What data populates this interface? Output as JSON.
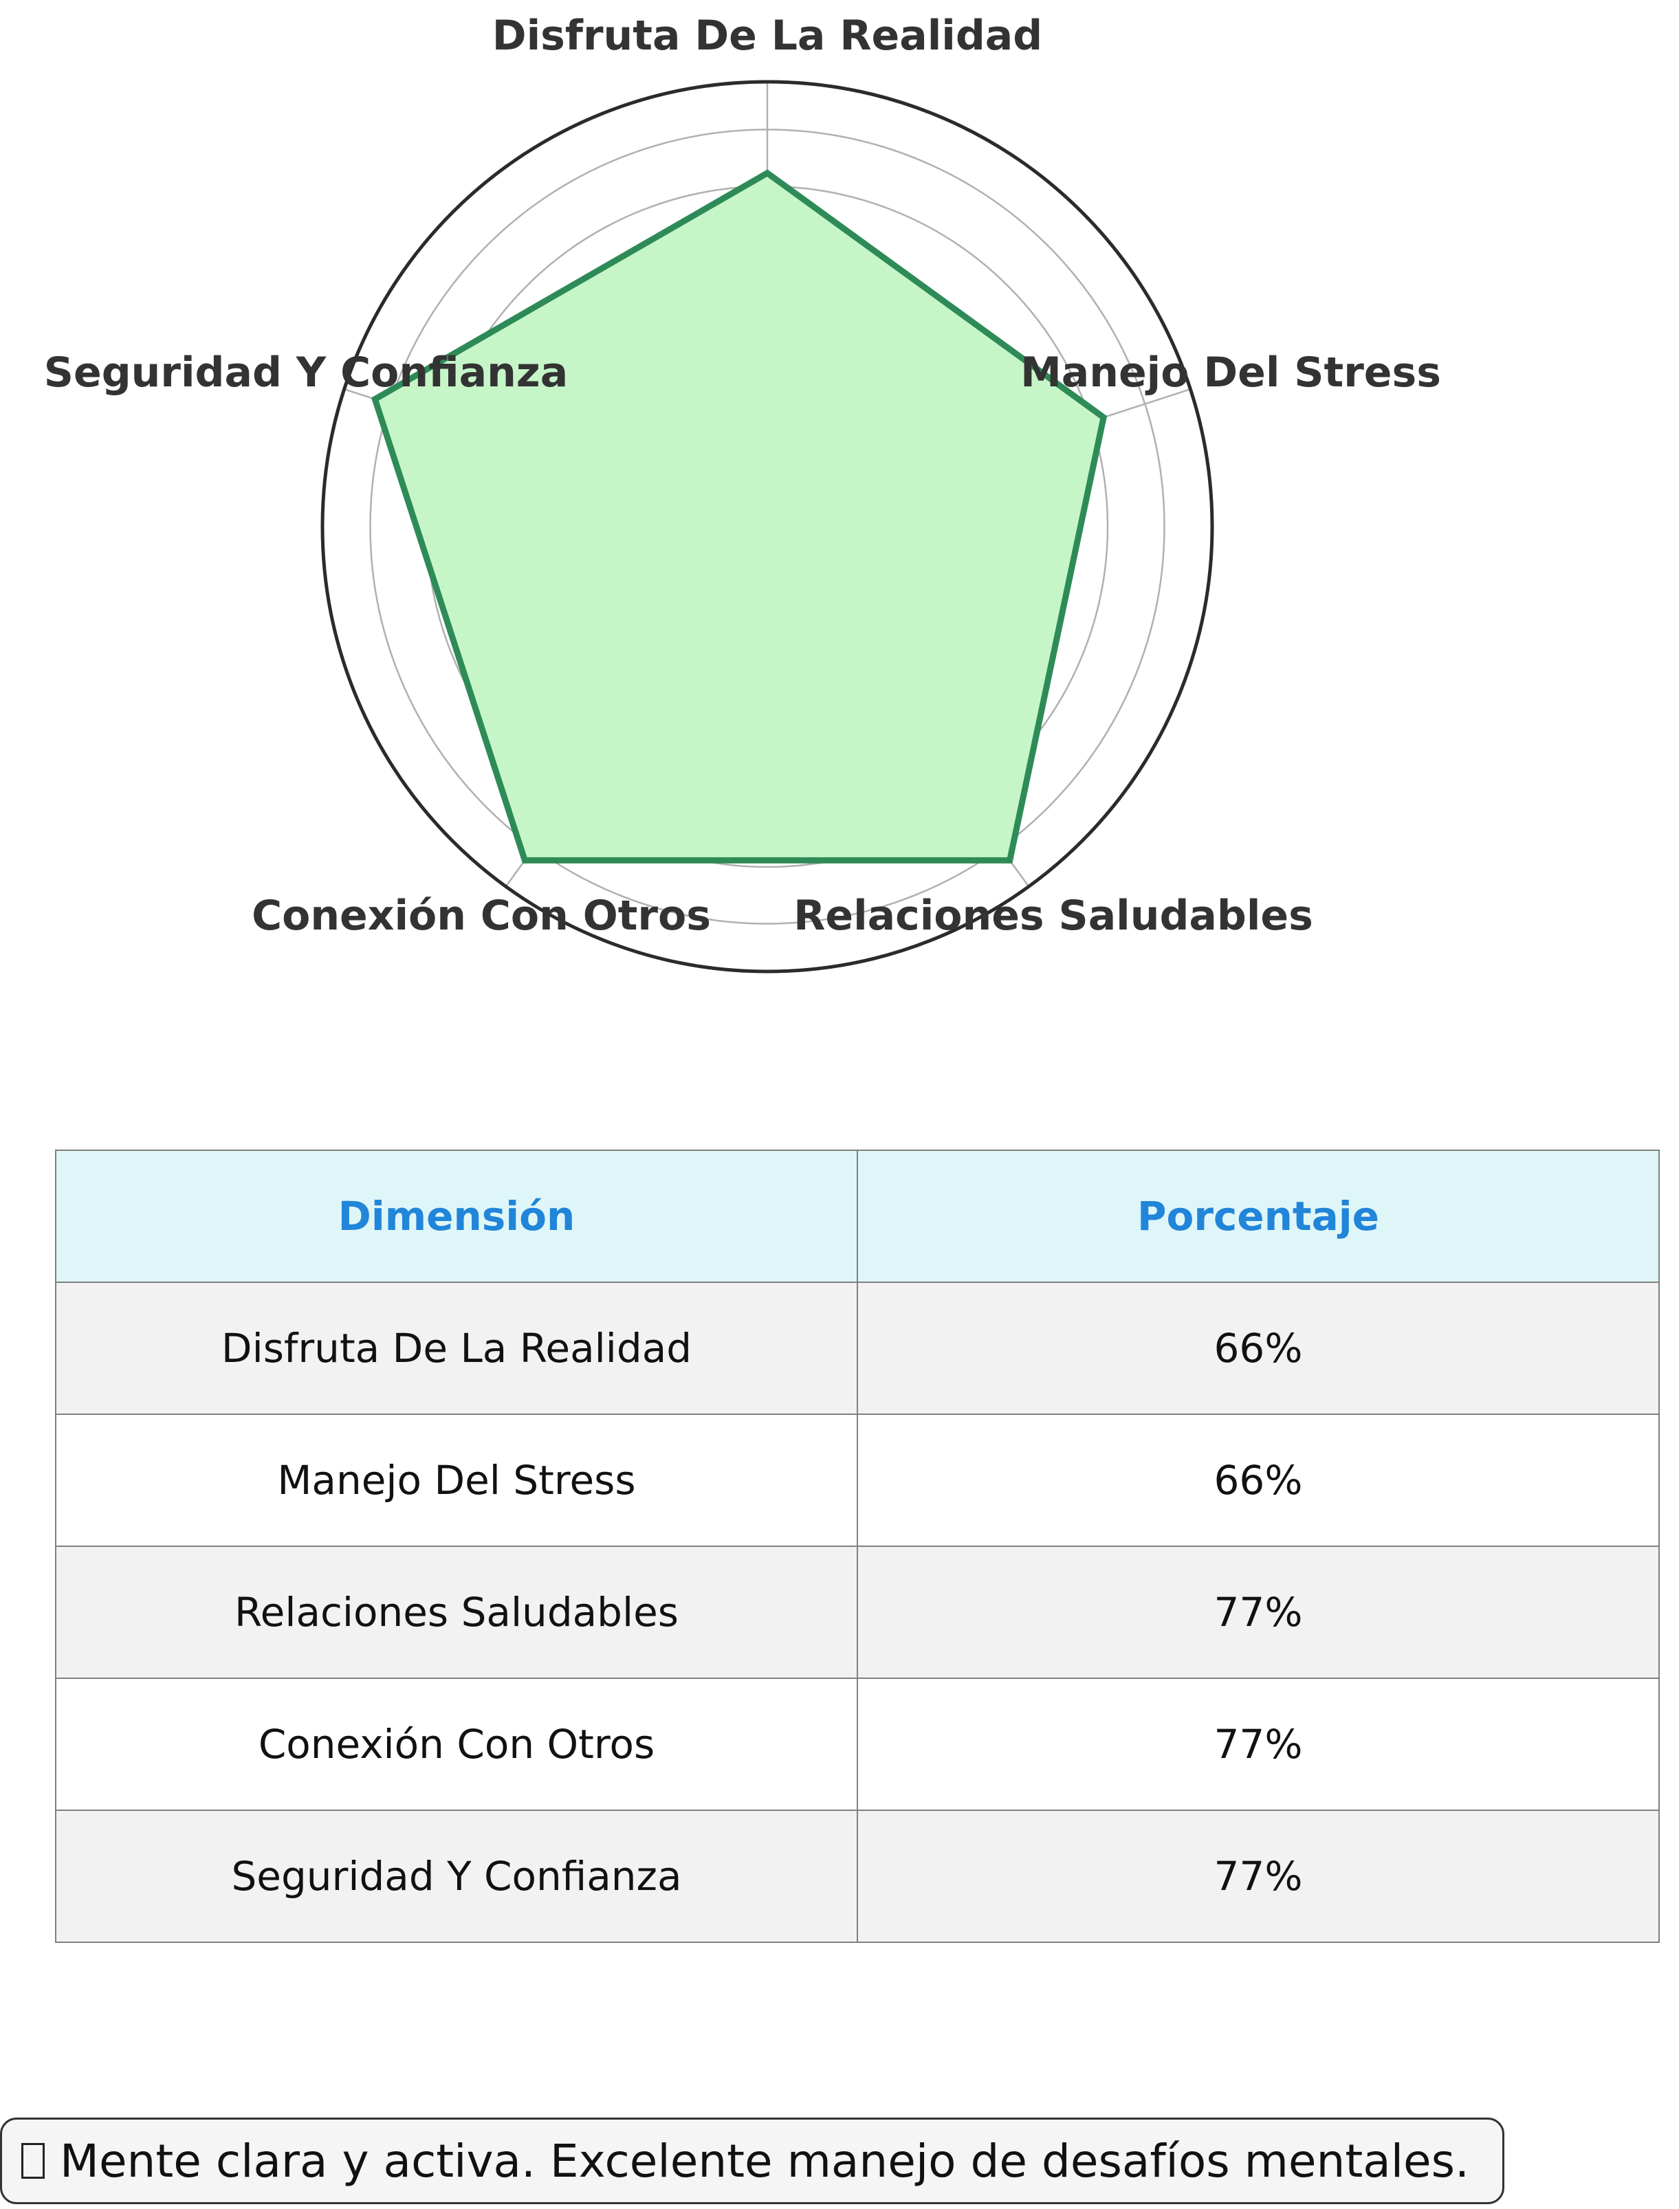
{
  "chart_data": {
    "type": "radar",
    "axes": [
      "Disfruta De La Realidad",
      "Manejo Del Stress",
      "Relaciones Saludables",
      "Conexión Con Otros",
      "Seguridad Y Confianza"
    ],
    "values": [
      66,
      66,
      77,
      77,
      77
    ],
    "rlim": [
      0,
      77
    ],
    "grid": true,
    "fill_color": "#c6f6c8",
    "line_color": "#2e8b57"
  },
  "table": {
    "headers": [
      "Dimensión",
      "Porcentaje"
    ],
    "rows": [
      [
        "Disfruta De La Realidad",
        "66%"
      ],
      [
        "Manejo Del Stress",
        "66%"
      ],
      [
        "Relaciones Saludables",
        "77%"
      ],
      [
        "Conexión Con Otros",
        "77%"
      ],
      [
        "Seguridad Y Confianza",
        "77%"
      ]
    ],
    "header_color": "#2185d9",
    "header_background": "#dff6f8"
  },
  "message": {
    "icon": "brain-icon",
    "text": "Mente clara y activa. Excelente manejo de desafíos mentales."
  }
}
